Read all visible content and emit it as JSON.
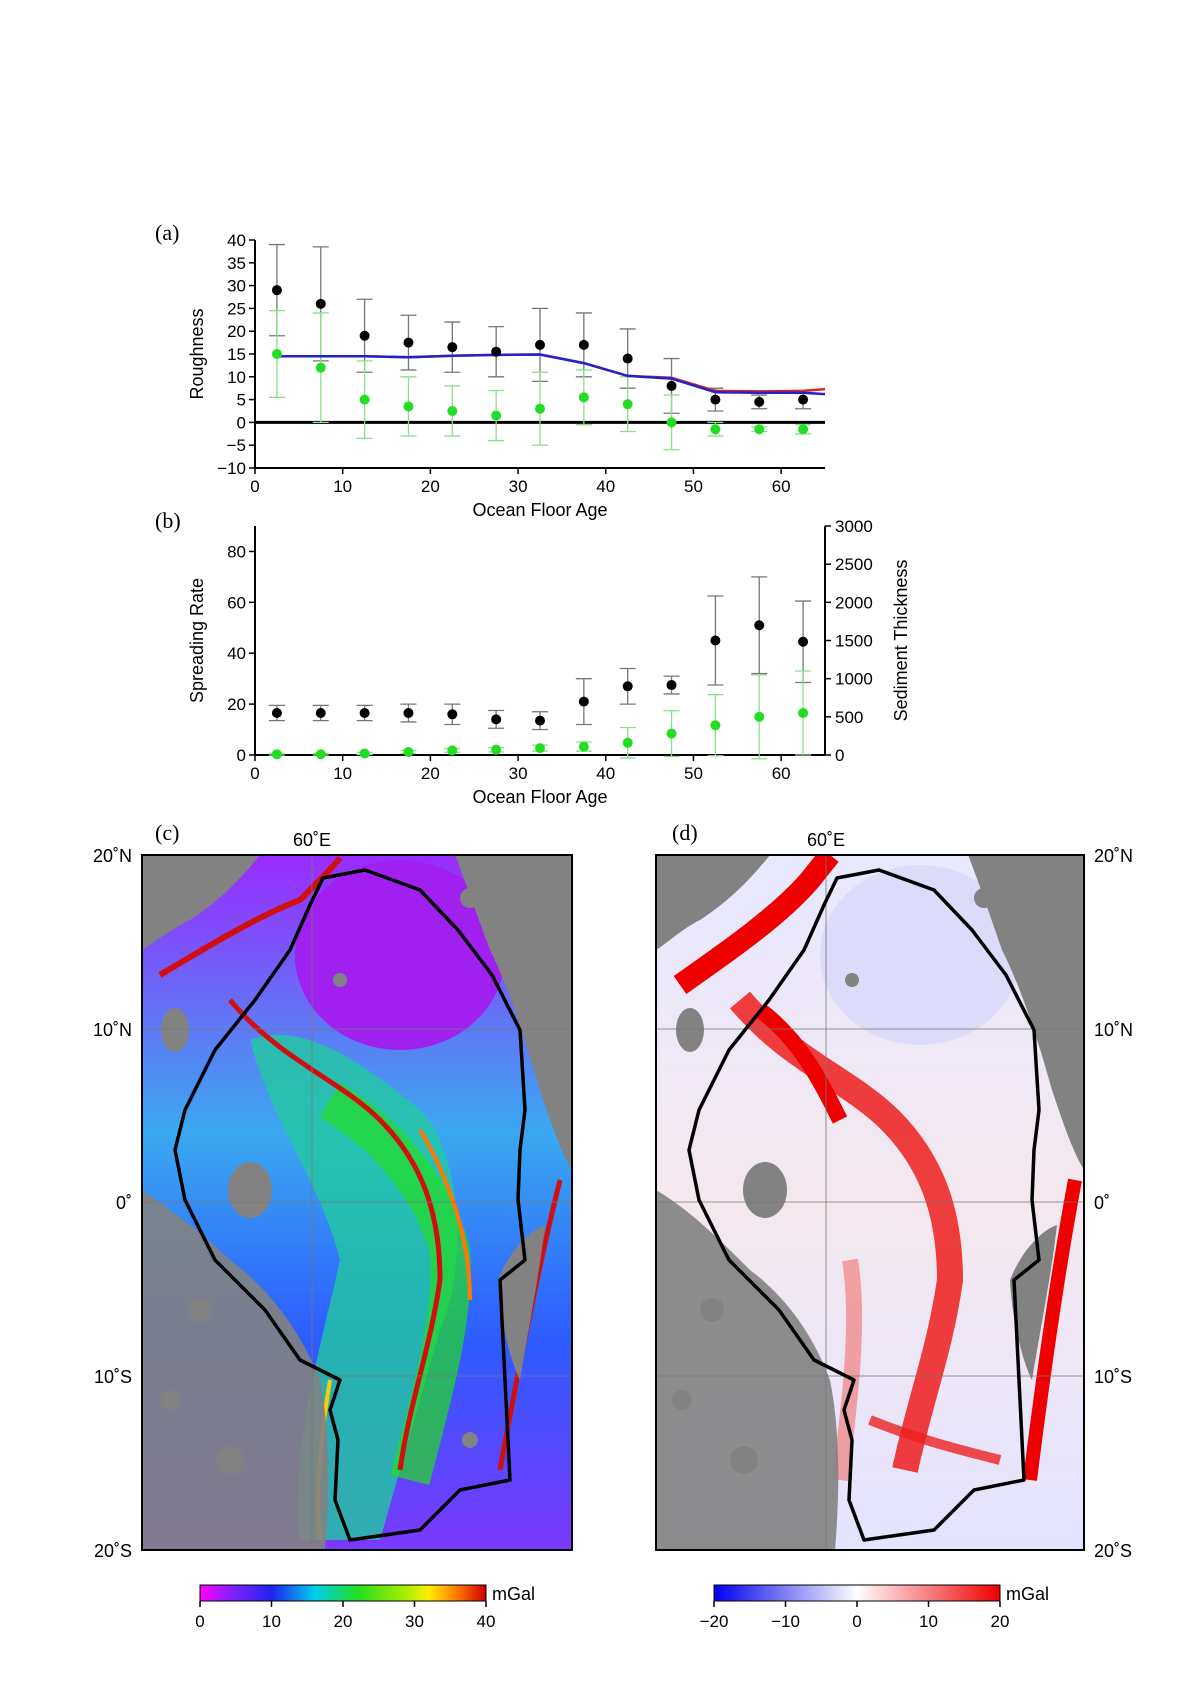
{
  "panel_labels": {
    "a": "(a)",
    "b": "(b)",
    "c": "(c)",
    "d": "(d)"
  },
  "chart_data": [
    {
      "type": "scatter",
      "panel": "(a)",
      "xlabel": "Ocean Floor Age",
      "ylabel": "Roughness",
      "xlim": [
        0,
        65
      ],
      "ylim": [
        -10,
        40
      ],
      "xticks": [
        "0",
        "10",
        "20",
        "30",
        "40",
        "50",
        "60"
      ],
      "yticks": [
        "40",
        "35",
        "30",
        "25",
        "20",
        "15",
        "10",
        "5",
        "0",
        "−5",
        "−10"
      ],
      "zero_line": true,
      "series": [
        {
          "color": "#000000",
          "x": [
            2.5,
            7.5,
            12.5,
            17.5,
            22.5,
            27.5,
            32.5,
            37.5,
            42.5,
            47.5,
            52.5,
            57.5,
            62.5
          ],
          "y": [
            29,
            26,
            19,
            17.5,
            16.5,
            15.5,
            17,
            17,
            14,
            8,
            5,
            4.5,
            5
          ],
          "err": [
            10,
            12.5,
            8,
            6,
            5.5,
            5.5,
            8,
            7,
            6.5,
            6,
            2.5,
            1.5,
            2
          ]
        },
        {
          "color": "#22dd22",
          "x": [
            2.5,
            7.5,
            12.5,
            17.5,
            22.5,
            27.5,
            32.5,
            37.5,
            42.5,
            47.5,
            52.5,
            57.5,
            62.5
          ],
          "y": [
            15,
            12,
            5,
            3.5,
            2.5,
            1.5,
            3,
            5.5,
            4,
            0,
            -1.5,
            -1.5,
            -1.5
          ],
          "err": [
            9.5,
            12,
            8.5,
            6.5,
            5.5,
            5.5,
            8,
            6,
            6,
            6,
            1.5,
            0.5,
            1
          ]
        },
        {
          "color": "#dd2222",
          "line": true,
          "x": [
            2.5,
            7.5,
            12.5,
            17.5,
            22.5,
            27.5,
            32.5,
            37.5,
            42.5,
            47.5,
            52.5,
            57.5,
            62.5,
            65
          ],
          "y": [
            14.5,
            14.5,
            14.5,
            14.3,
            14.6,
            14.8,
            14.9,
            13,
            10.2,
            9.8,
            6.9,
            6.8,
            6.9,
            7.3
          ]
        },
        {
          "color": "#2222cc",
          "line": true,
          "x": [
            2.5,
            7.5,
            12.5,
            17.5,
            22.5,
            27.5,
            32.5,
            37.5,
            42.5,
            47.5,
            52.5,
            57.5,
            62.5,
            65
          ],
          "y": [
            14.5,
            14.5,
            14.5,
            14.3,
            14.6,
            14.8,
            14.9,
            13,
            10.2,
            9.6,
            6.6,
            6.5,
            6.5,
            6.2
          ]
        }
      ]
    },
    {
      "type": "scatter",
      "panel": "(b)",
      "xlabel": "Ocean Floor Age",
      "ylabel": "Spreading Rate",
      "y2label": "Sediment Thickness",
      "xlim": [
        0,
        65
      ],
      "ylim": [
        0,
        90
      ],
      "y2lim": [
        0,
        3000
      ],
      "xticks": [
        "0",
        "10",
        "20",
        "30",
        "40",
        "50",
        "60"
      ],
      "yticks": [
        "80",
        "60",
        "40",
        "20",
        "0"
      ],
      "y2ticks": [
        "3000",
        "2500",
        "2000",
        "1500",
        "1000",
        "500",
        "0"
      ],
      "series": [
        {
          "color": "#000000",
          "axis": "left",
          "x": [
            2.5,
            7.5,
            12.5,
            17.5,
            22.5,
            27.5,
            32.5,
            37.5,
            42.5,
            47.5,
            52.5,
            57.5,
            62.5
          ],
          "y": [
            16.5,
            16.5,
            16.5,
            16.5,
            16,
            14,
            13.5,
            21,
            27,
            27.5,
            45,
            51,
            44.5
          ],
          "err": [
            3,
            3,
            3,
            3.5,
            4,
            3.5,
            3.5,
            9,
            7,
            3.5,
            17.5,
            19,
            16
          ]
        },
        {
          "color": "#22dd22",
          "axis": "right",
          "x": [
            2.5,
            7.5,
            12.5,
            17.5,
            22.5,
            27.5,
            32.5,
            37.5,
            42.5,
            47.5,
            52.5,
            57.5,
            62.5
          ],
          "y": [
            10,
            10,
            20,
            40,
            60,
            70,
            90,
            110,
            160,
            280,
            390,
            500,
            550
          ],
          "err": [
            10,
            10,
            15,
            20,
            25,
            30,
            40,
            60,
            200,
            300,
            400,
            550,
            550
          ]
        }
      ]
    },
    {
      "type": "heatmap",
      "panel": "(c)",
      "lon_label": "60˚E",
      "lat_labels": [
        "20˚N",
        "10˚N",
        "0˚",
        "10˚S",
        "20˚S"
      ],
      "colorbar": {
        "ticks": [
          "0",
          "10",
          "20",
          "30",
          "40"
        ],
        "unit": "mGal",
        "range": [
          0,
          40
        ],
        "colors": [
          "#ff00ff",
          "#2222ee",
          "#00dddd",
          "#22dd22",
          "#ffff00",
          "#ff7700",
          "#cc0000"
        ]
      }
    },
    {
      "type": "heatmap",
      "panel": "(d)",
      "lon_label": "60˚E",
      "lat_labels": [
        "20˚N",
        "10˚N",
        "0˚",
        "10˚S",
        "20˚S"
      ],
      "colorbar": {
        "ticks": [
          "−20",
          "−10",
          "0",
          "10",
          "20"
        ],
        "unit": "mGal",
        "range": [
          -20,
          20
        ],
        "colors": [
          "#0000ee",
          "#ffffff",
          "#ee0000"
        ]
      }
    }
  ]
}
